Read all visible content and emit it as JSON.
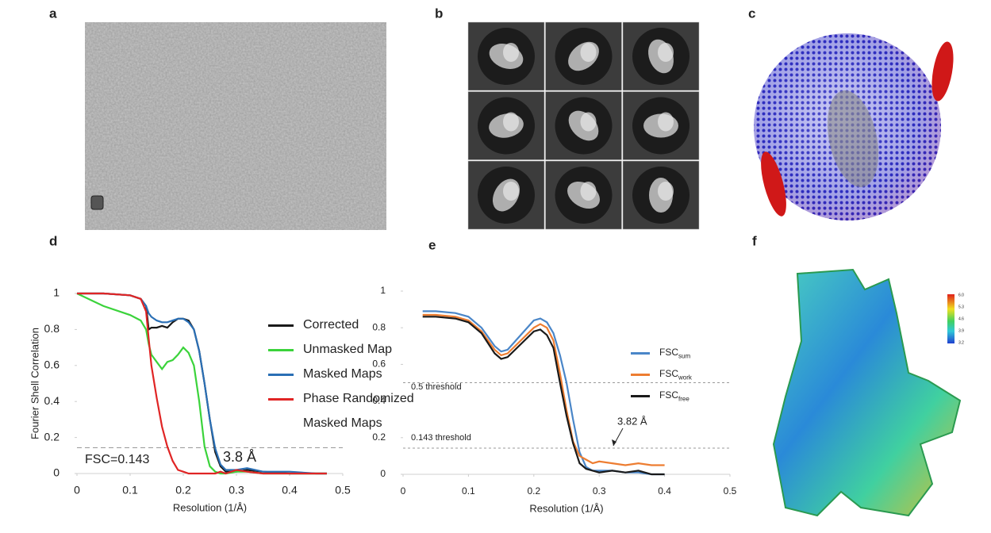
{
  "panel_labels": [
    "a",
    "b",
    "c",
    "d",
    "e",
    "f"
  ],
  "colorbar_labels": [
    "6.0",
    "5.3",
    "4.6",
    "3.9",
    "3.2"
  ],
  "chart_data": [
    {
      "type": "line",
      "xlabel": "Resolution (1/Å)",
      "ylabel": "Fourier Shell Correlation",
      "xlim": [
        0,
        0.5
      ],
      "xticks": [
        0,
        0.1,
        0.2,
        0.3,
        0.4,
        0.5
      ],
      "ylim": [
        0,
        1
      ],
      "yticks": [
        0,
        0.2,
        0.4,
        0.6,
        0.8,
        1
      ],
      "thresholds": [
        0.143
      ],
      "annotations": [
        "FSC=0.143",
        "3.8 Å"
      ],
      "x": [
        0,
        0.05,
        0.1,
        0.12,
        0.13,
        0.135,
        0.14,
        0.15,
        0.16,
        0.17,
        0.18,
        0.19,
        0.2,
        0.21,
        0.22,
        0.23,
        0.24,
        0.25,
        0.26,
        0.27,
        0.28,
        0.3,
        0.32,
        0.35,
        0.4,
        0.45,
        0.47
      ],
      "series": [
        {
          "name": "Corrected",
          "color": "#1a1a1a",
          "values": [
            1,
            1,
            0.99,
            0.97,
            0.93,
            0.8,
            0.81,
            0.81,
            0.82,
            0.81,
            0.84,
            0.86,
            0.86,
            0.85,
            0.8,
            0.68,
            0.5,
            0.3,
            0.12,
            0.04,
            0.01,
            0.01,
            0.02,
            0.01,
            0,
            0,
            0
          ]
        },
        {
          "name": "Unmasked Map",
          "color": "#3bd33b",
          "values": [
            1,
            0.93,
            0.88,
            0.85,
            0.8,
            0.72,
            0.66,
            0.62,
            0.58,
            0.62,
            0.63,
            0.66,
            0.7,
            0.67,
            0.6,
            0.4,
            0.15,
            0.04,
            0.01,
            0,
            0,
            0.01,
            0.01,
            0,
            0,
            0,
            0
          ]
        },
        {
          "name": "Masked Maps",
          "color": "#2a6fb5",
          "values": [
            1,
            1,
            0.99,
            0.97,
            0.93,
            0.89,
            0.87,
            0.85,
            0.84,
            0.84,
            0.85,
            0.86,
            0.86,
            0.84,
            0.8,
            0.68,
            0.5,
            0.3,
            0.14,
            0.05,
            0.02,
            0.02,
            0.03,
            0.01,
            0.01,
            0,
            0
          ]
        },
        {
          "name": "Phase Randomized Masked Maps",
          "color": "#e02525",
          "values": [
            1,
            1,
            0.99,
            0.97,
            0.9,
            0.75,
            0.6,
            0.42,
            0.26,
            0.15,
            0.07,
            0.02,
            0.01,
            0,
            0,
            0,
            0,
            0,
            0,
            0.01,
            0,
            0.02,
            0.01,
            0,
            0,
            0,
            0
          ]
        }
      ]
    },
    {
      "type": "line",
      "xlabel": "Resolution (1/Å)",
      "xlim": [
        0,
        0.5
      ],
      "xticks": [
        0,
        0.1,
        0.2,
        0.3,
        0.4,
        0.5
      ],
      "ylim": [
        0,
        1
      ],
      "yticks": [
        0,
        0.2,
        0.4,
        0.6,
        0.8,
        1
      ],
      "thresholds": [
        0.5,
        0.143
      ],
      "annotations": [
        "0.5 threshold",
        "0.143 threshold",
        "3.82 Å"
      ],
      "x": [
        0.03,
        0.05,
        0.08,
        0.1,
        0.12,
        0.14,
        0.15,
        0.16,
        0.18,
        0.2,
        0.21,
        0.22,
        0.23,
        0.24,
        0.25,
        0.26,
        0.27,
        0.28,
        0.29,
        0.3,
        0.32,
        0.34,
        0.36,
        0.38,
        0.4
      ],
      "series": [
        {
          "name": "FSC",
          "subscript": "sum",
          "color": "#4a86c8",
          "values": [
            0.89,
            0.89,
            0.88,
            0.86,
            0.8,
            0.7,
            0.67,
            0.68,
            0.76,
            0.84,
            0.85,
            0.83,
            0.77,
            0.65,
            0.5,
            0.3,
            0.12,
            0.04,
            0.02,
            0.02,
            0.02,
            0.01,
            0.01,
            0,
            0
          ]
        },
        {
          "name": "FSC",
          "subscript": "work",
          "color": "#ed7d31",
          "values": [
            0.87,
            0.87,
            0.86,
            0.84,
            0.78,
            0.68,
            0.65,
            0.66,
            0.73,
            0.8,
            0.82,
            0.8,
            0.73,
            0.55,
            0.35,
            0.18,
            0.1,
            0.08,
            0.06,
            0.07,
            0.06,
            0.05,
            0.06,
            0.05,
            0.05
          ]
        },
        {
          "name": "FSC",
          "subscript": "free",
          "color": "#1a1a1a",
          "values": [
            0.86,
            0.86,
            0.85,
            0.83,
            0.77,
            0.66,
            0.63,
            0.64,
            0.71,
            0.78,
            0.79,
            0.76,
            0.69,
            0.5,
            0.32,
            0.17,
            0.06,
            0.03,
            0.02,
            0.01,
            0.02,
            0.01,
            0.02,
            0,
            0
          ]
        }
      ]
    }
  ]
}
